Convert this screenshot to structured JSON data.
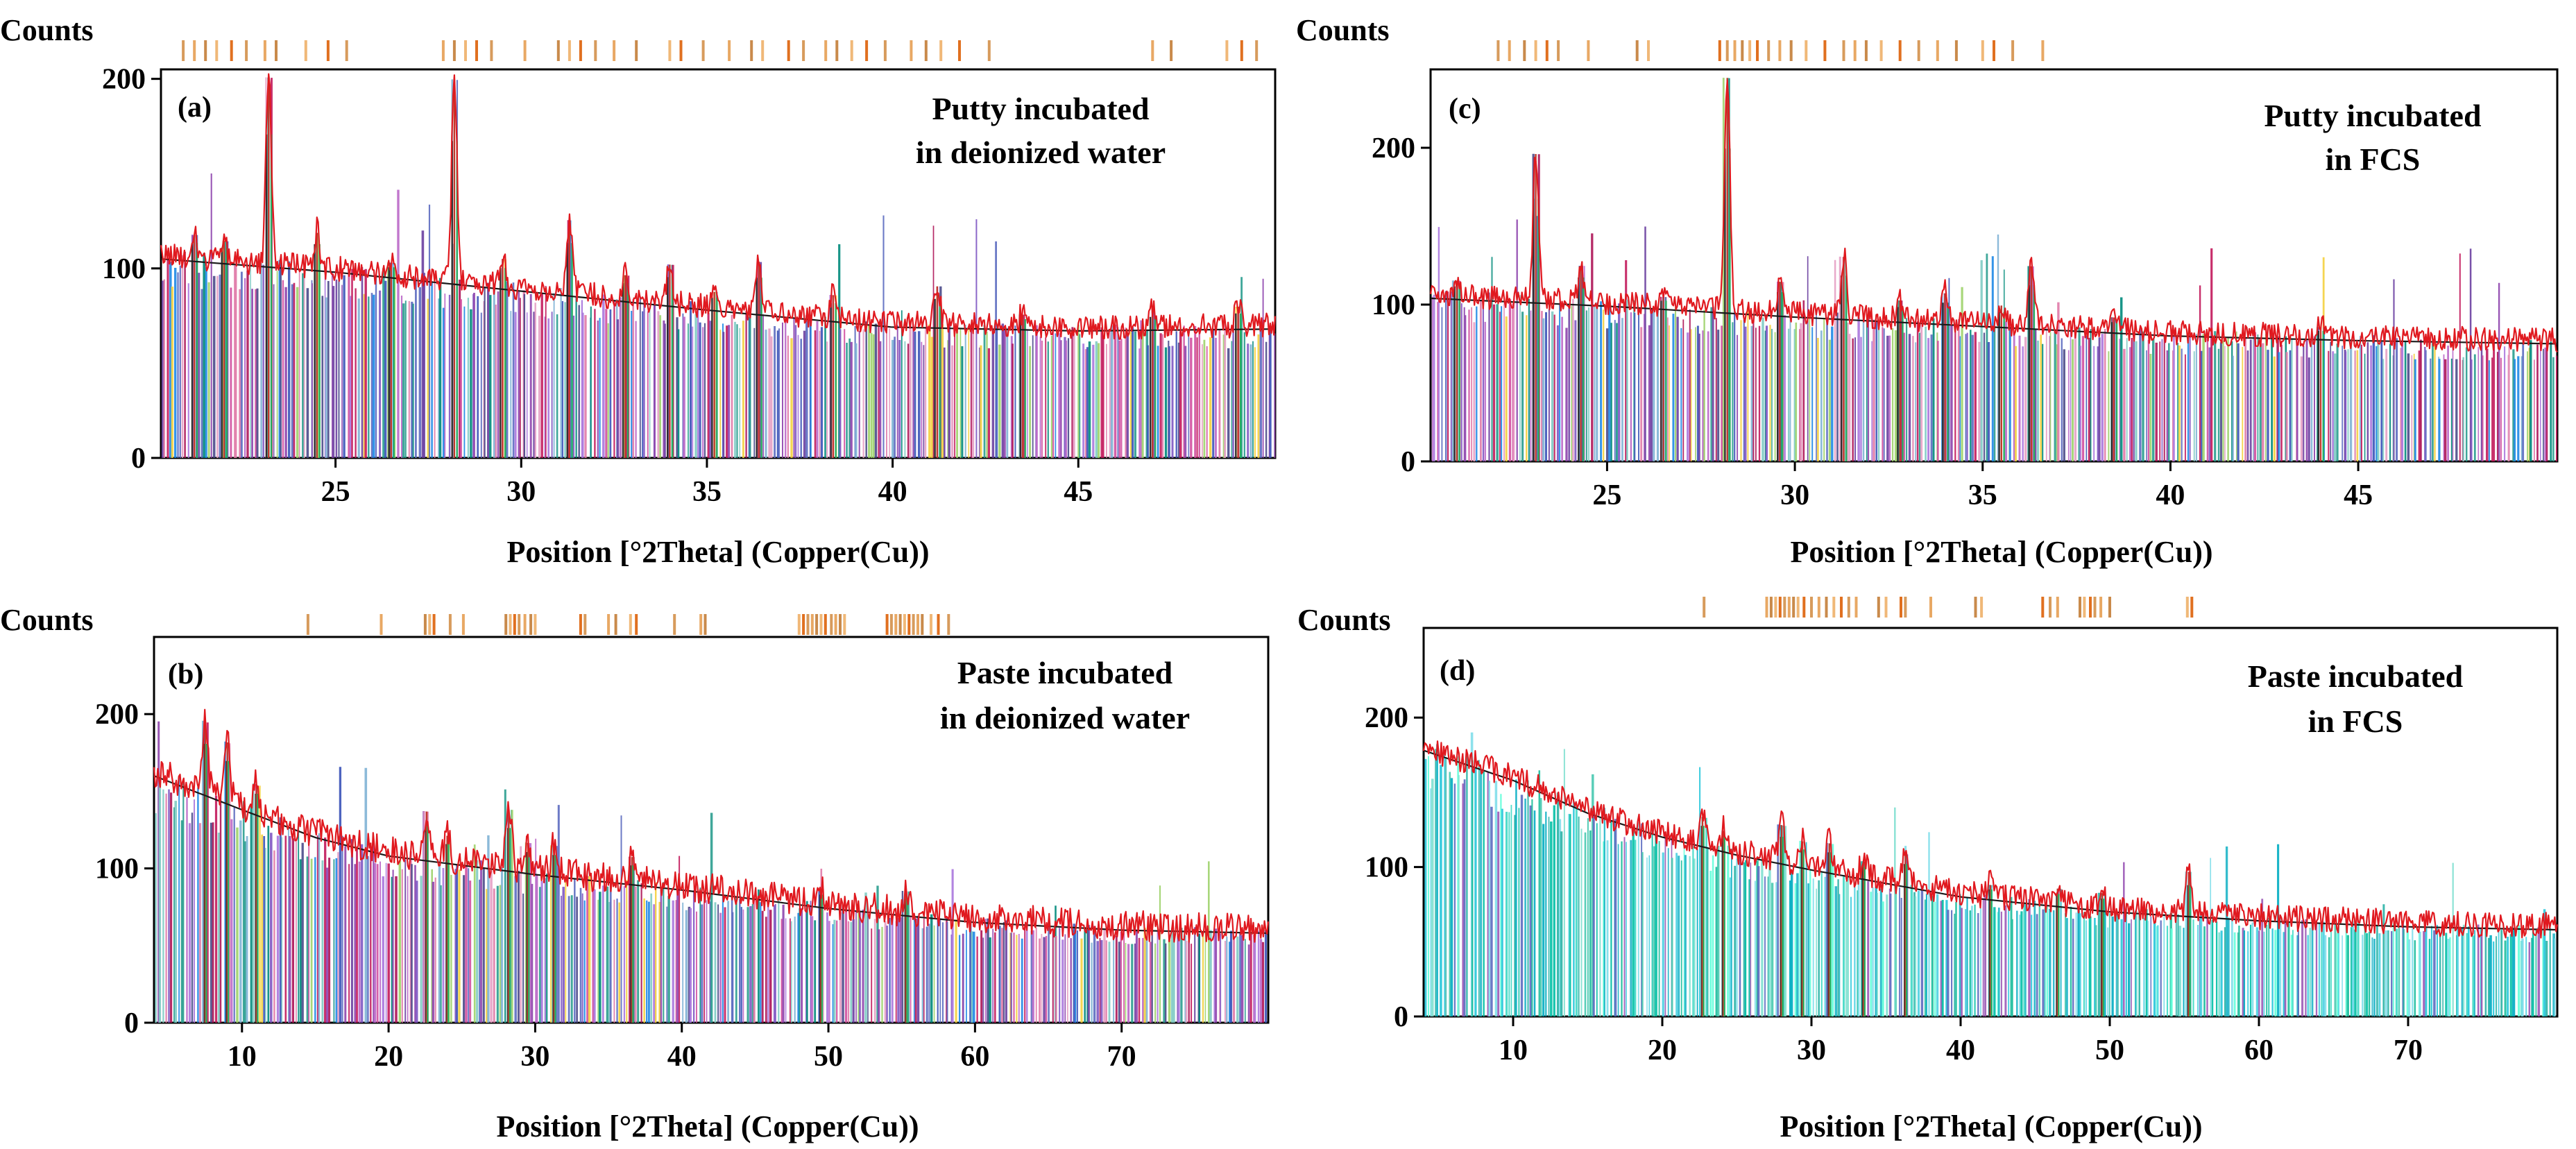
{
  "figure": {
    "x_axis_label": "Position [°2Theta] (Copper(Cu))",
    "y_axis_label": "Counts"
  },
  "chart_data": [
    {
      "id": "a",
      "type": "line",
      "panel_label": "(a)",
      "title_line1": "Putty incubated",
      "title_line2": "in deionized water",
      "ylabel": "Counts",
      "xlabel": "Position [°2Theta] (Copper(Cu))",
      "xlim": [
        20.3,
        50.3
      ],
      "ylim": [
        0,
        205
      ],
      "xticks": [
        25,
        30,
        35,
        40,
        45
      ],
      "yticks": [
        0,
        100,
        200
      ],
      "background": [
        [
          20.3,
          105
        ],
        [
          25,
          98
        ],
        [
          30,
          88
        ],
        [
          35,
          78
        ],
        [
          40,
          69
        ],
        [
          45,
          67
        ],
        [
          50.3,
          68
        ]
      ],
      "peaks": [
        [
          21.2,
          14
        ],
        [
          22.0,
          12
        ],
        [
          23.2,
          100
        ],
        [
          24.5,
          20
        ],
        [
          26.5,
          8
        ],
        [
          28.2,
          108
        ],
        [
          29.5,
          16
        ],
        [
          31.3,
          40
        ],
        [
          32.8,
          14
        ],
        [
          34.0,
          22
        ],
        [
          35.2,
          10
        ],
        [
          36.4,
          28
        ],
        [
          38.4,
          14
        ],
        [
          41.2,
          22
        ],
        [
          43.5,
          8
        ],
        [
          47.0,
          10
        ],
        [
          49.3,
          12
        ]
      ],
      "noise": 6,
      "stick_color_mode": "mixed",
      "reference_ticks": [
        20.9,
        21.2,
        21.5,
        21.8,
        22.2,
        22.6,
        23.1,
        23.4,
        24.2,
        24.8,
        25.3,
        27.9,
        28.2,
        28.5,
        28.8,
        29.2,
        30.1,
        31.0,
        31.3,
        31.6,
        32.0,
        32.5,
        33.1,
        34.0,
        34.3,
        34.9,
        35.6,
        36.2,
        36.5,
        37.2,
        37.6,
        38.2,
        38.5,
        38.9,
        39.3,
        39.8,
        40.5,
        40.9,
        41.3,
        41.8,
        42.6,
        47.0,
        47.5,
        49.0,
        49.4,
        49.8
      ]
    },
    {
      "id": "b",
      "type": "line",
      "panel_label": "(b)",
      "title_line1": "Paste incubated",
      "title_line2": "in deionized water",
      "ylabel": "Counts",
      "xlabel": "Position [°2Theta] (Copper(Cu))",
      "xlim": [
        4,
        80
      ],
      "ylim": [
        0,
        250
      ],
      "xticks": [
        10,
        20,
        30,
        40,
        50,
        60,
        70
      ],
      "yticks": [
        0,
        100,
        200
      ],
      "background": [
        [
          4,
          160
        ],
        [
          10,
          138
        ],
        [
          15,
          120
        ],
        [
          20,
          108
        ],
        [
          25,
          102
        ],
        [
          30,
          96
        ],
        [
          40,
          86
        ],
        [
          50,
          74
        ],
        [
          60,
          65
        ],
        [
          70,
          60
        ],
        [
          80,
          58
        ]
      ],
      "peaks": [
        [
          7.5,
          48
        ],
        [
          9.0,
          40
        ],
        [
          11.0,
          20
        ],
        [
          22.6,
          32
        ],
        [
          24.0,
          18
        ],
        [
          28.2,
          40
        ],
        [
          29.5,
          20
        ],
        [
          31.3,
          20
        ],
        [
          36.6,
          18
        ],
        [
          49.5,
          12
        ],
        [
          55.3,
          16
        ]
      ],
      "noise": 9,
      "stick_color_mode": "mixed",
      "reference_ticks": [
        14.5,
        19.5,
        22.5,
        22.8,
        23.1,
        24.2,
        25.1,
        28.0,
        28.3,
        28.6,
        28.9,
        29.3,
        29.7,
        30.0,
        33.1,
        33.4,
        35.0,
        35.5,
        36.5,
        36.9,
        39.5,
        41.3,
        41.6,
        48.0,
        48.3,
        48.6,
        48.9,
        49.2,
        49.5,
        49.8,
        50.2,
        50.5,
        50.8,
        51.1,
        54.0,
        54.3,
        54.6,
        54.9,
        55.2,
        55.5,
        55.8,
        56.1,
        56.4,
        57.0,
        57.5,
        58.2
      ]
    },
    {
      "id": "c",
      "type": "line",
      "panel_label": "(c)",
      "title_line1": "Putty incubated",
      "title_line2": "in  FCS",
      "ylabel": "Counts",
      "xlabel": "Position [°2Theta] (Copper(Cu))",
      "xlim": [
        20.3,
        50.3
      ],
      "ylim": [
        0,
        250
      ],
      "xticks": [
        25,
        30,
        35,
        40,
        45
      ],
      "yticks": [
        0,
        100,
        200
      ],
      "background": [
        [
          20.3,
          104
        ],
        [
          25,
          99
        ],
        [
          30,
          92
        ],
        [
          35,
          86
        ],
        [
          40,
          80
        ],
        [
          45,
          77
        ],
        [
          50.3,
          75
        ]
      ],
      "peaks": [
        [
          21.0,
          12
        ],
        [
          23.1,
          95
        ],
        [
          24.3,
          25
        ],
        [
          26.5,
          8
        ],
        [
          28.2,
          150
        ],
        [
          29.6,
          22
        ],
        [
          31.3,
          40
        ],
        [
          32.8,
          14
        ],
        [
          34.0,
          20
        ],
        [
          35.5,
          14
        ],
        [
          36.3,
          40
        ],
        [
          38.5,
          10
        ],
        [
          44.0,
          8
        ]
      ],
      "noise": 7,
      "stick_color_mode": "mixed",
      "reference_ticks": [
        22.1,
        22.4,
        22.8,
        23.1,
        23.4,
        23.7,
        24.5,
        25.8,
        26.1,
        28.0,
        28.2,
        28.4,
        28.6,
        28.8,
        29.0,
        29.3,
        29.6,
        29.9,
        30.3,
        30.8,
        31.3,
        31.6,
        31.9,
        32.3,
        32.8,
        33.3,
        33.8,
        34.3,
        35.0,
        35.3,
        35.8,
        36.6
      ]
    },
    {
      "id": "d",
      "type": "line",
      "panel_label": "(d)",
      "title_line1": "Paste incubated",
      "title_line2": "in  FCS",
      "ylabel": "Counts",
      "xlabel": "Position [°2Theta] (Copper(Cu))",
      "xlim": [
        4,
        80
      ],
      "ylim": [
        0,
        260
      ],
      "xticks": [
        10,
        20,
        30,
        40,
        50,
        60,
        70
      ],
      "yticks": [
        0,
        100,
        200
      ],
      "background": [
        [
          4,
          178
        ],
        [
          10,
          158
        ],
        [
          15,
          136
        ],
        [
          20,
          120
        ],
        [
          25,
          108
        ],
        [
          30,
          98
        ],
        [
          40,
          80
        ],
        [
          50,
          70
        ],
        [
          60,
          64
        ],
        [
          70,
          60
        ],
        [
          80,
          58
        ]
      ],
      "peaks": [
        [
          22.7,
          20
        ],
        [
          24.1,
          14
        ],
        [
          28.0,
          26
        ],
        [
          29.4,
          18
        ],
        [
          31.2,
          20
        ],
        [
          33.5,
          12
        ],
        [
          36.3,
          22
        ],
        [
          42.0,
          10
        ],
        [
          46.5,
          12
        ],
        [
          49.5,
          12
        ],
        [
          55.3,
          30
        ]
      ],
      "noise": 8,
      "stick_color_mode": "cyan",
      "reference_ticks": [
        22.8,
        27.0,
        27.3,
        27.6,
        27.9,
        28.2,
        28.5,
        28.8,
        29.1,
        29.5,
        30.0,
        30.5,
        31.0,
        31.5,
        32.0,
        32.5,
        33.0,
        34.5,
        35.0,
        36.0,
        36.3,
        38.0,
        41.0,
        41.4,
        45.5,
        46.0,
        46.5,
        48.0,
        48.3,
        48.7,
        49.0,
        49.4,
        50.0,
        55.2,
        55.5
      ]
    }
  ]
}
